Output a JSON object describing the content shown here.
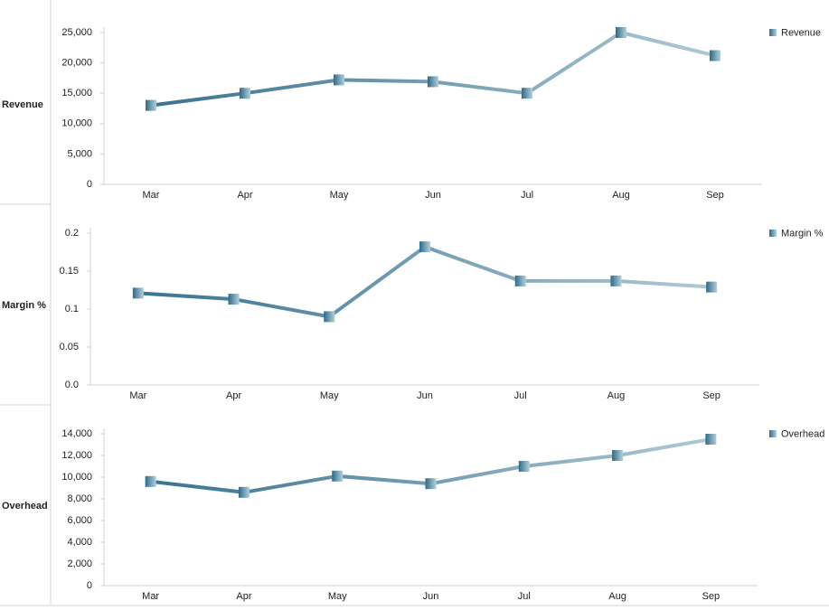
{
  "chart_data": [
    {
      "type": "line",
      "title": "Revenue",
      "categories": [
        "Mar",
        "Apr",
        "May",
        "Jun",
        "Jul",
        "Aug",
        "Sep"
      ],
      "series": [
        {
          "name": "Revenue",
          "colors": [
            "#3a7390",
            "#afc9d4"
          ],
          "values": [
            13000,
            15000,
            17200,
            16900,
            15000,
            25000,
            21200
          ]
        }
      ],
      "ylim": [
        0,
        25000
      ],
      "yticks": [
        0,
        {
          "value": 5000,
          "label": "5,000"
        },
        {
          "value": 10000,
          "label": "10,000"
        },
        {
          "value": 15000,
          "label": "15,000"
        },
        {
          "value": 20000,
          "label": "20,000"
        },
        {
          "value": 25000,
          "label": "25,000"
        }
      ],
      "legend": "top-right"
    },
    {
      "type": "line",
      "title": "Margin %",
      "categories": [
        "Mar",
        "Apr",
        "May",
        "Jun",
        "Jul",
        "Aug",
        "Sep"
      ],
      "series": [
        {
          "name": "Margin %",
          "colors": [
            "#3a7390",
            "#afc9d4"
          ],
          "values": [
            0.121,
            0.113,
            0.09,
            0.182,
            0.137,
            0.137,
            0.129
          ]
        }
      ],
      "ylim": [
        0,
        0.2
      ],
      "yticks": [
        {
          "value": 0,
          "label": "0.0"
        },
        0.05,
        0.1,
        0.15,
        0.2
      ],
      "legend": "top-right"
    },
    {
      "type": "line",
      "title": "Overhead",
      "categories": [
        "Mar",
        "Apr",
        "May",
        "Jun",
        "Jul",
        "Aug",
        "Sep"
      ],
      "series": [
        {
          "name": "Overhead",
          "colors": [
            "#3a7390",
            "#afc9d4"
          ],
          "values": [
            9600,
            8600,
            10100,
            9400,
            11000,
            12000,
            13500
          ]
        }
      ],
      "ylim": [
        0,
        14000
      ],
      "yticks": [
        0,
        {
          "value": 2000,
          "label": "2,000"
        },
        {
          "value": 4000,
          "label": "4,000"
        },
        {
          "value": 6000,
          "label": "6,000"
        },
        {
          "value": 8000,
          "label": "8,000"
        },
        {
          "value": 10000,
          "label": "10,000"
        },
        {
          "value": 12000,
          "label": "12,000"
        },
        {
          "value": 14000,
          "label": "14,000"
        }
      ],
      "legend": "top-right"
    }
  ]
}
